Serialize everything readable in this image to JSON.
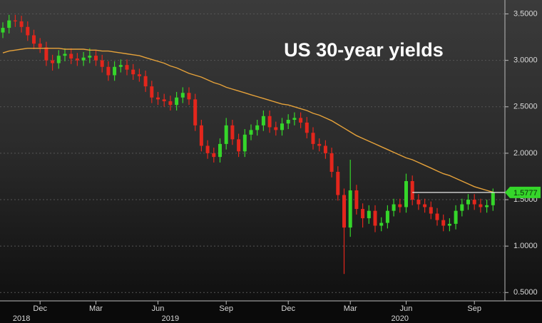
{
  "chart_data": {
    "type": "candlestick",
    "title": "US 30-year yields",
    "categories": [
      null,
      null,
      null,
      null,
      null,
      null,
      "Dec",
      null,
      null,
      null,
      null,
      null,
      null,
      null,
      null,
      "Mar",
      null,
      null,
      null,
      null,
      null,
      null,
      null,
      null,
      null,
      "Jun",
      null,
      null,
      null,
      null,
      null,
      null,
      null,
      null,
      null,
      null,
      "Sep",
      null,
      null,
      null,
      null,
      null,
      null,
      null,
      null,
      null,
      "Dec",
      null,
      null,
      null,
      null,
      null,
      null,
      null,
      null,
      null,
      "Mar",
      null,
      null,
      null,
      null,
      null,
      null,
      null,
      null,
      "Jun",
      null,
      null,
      null,
      null,
      null,
      null,
      null,
      null,
      null,
      null,
      "Sep",
      null,
      null,
      null
    ],
    "year_labels": [
      null,
      null,
      null,
      "2018",
      null,
      null,
      null,
      null,
      null,
      null,
      null,
      null,
      null,
      null,
      null,
      null,
      null,
      null,
      null,
      null,
      null,
      null,
      null,
      null,
      null,
      null,
      null,
      "2019",
      null,
      null,
      null,
      null,
      null,
      null,
      null,
      null,
      null,
      null,
      null,
      null,
      null,
      null,
      null,
      null,
      null,
      null,
      null,
      null,
      null,
      null,
      null,
      null,
      null,
      null,
      null,
      null,
      null,
      null,
      null,
      null,
      null,
      null,
      null,
      null,
      "2020",
      null,
      null,
      null,
      null,
      null,
      null,
      null,
      null,
      null,
      null,
      null,
      null,
      null,
      null,
      null
    ],
    "open": [
      3.3,
      3.35,
      3.43,
      3.42,
      3.36,
      3.27,
      3.18,
      3.14,
      3.0,
      2.97,
      3.05,
      3.07,
      3.02,
      3.0,
      3.03,
      3.05,
      3.0,
      2.93,
      2.84,
      2.93,
      2.95,
      2.9,
      2.85,
      2.83,
      2.72,
      2.6,
      2.58,
      2.56,
      2.52,
      2.6,
      2.65,
      2.58,
      2.3,
      2.08,
      2.0,
      1.96,
      2.1,
      2.3,
      2.15,
      2.02,
      2.2,
      2.25,
      2.3,
      2.4,
      2.28,
      2.25,
      2.32,
      2.36,
      2.38,
      2.33,
      2.22,
      2.1,
      2.08,
      2.0,
      1.8,
      1.55,
      1.2,
      1.6,
      1.4,
      1.3,
      1.38,
      1.22,
      1.25,
      1.38,
      1.45,
      1.42,
      1.7,
      1.5,
      1.45,
      1.42,
      1.35,
      1.28,
      1.22,
      1.24,
      1.38,
      1.45,
      1.5,
      1.45,
      1.42,
      1.44
    ],
    "high": [
      3.41,
      3.49,
      3.49,
      3.48,
      3.42,
      3.33,
      3.24,
      3.2,
      3.06,
      3.11,
      3.13,
      3.13,
      3.08,
      3.09,
      3.13,
      3.11,
      3.06,
      2.99,
      2.99,
      3.01,
      3.01,
      2.96,
      2.91,
      2.89,
      2.78,
      2.66,
      2.64,
      2.62,
      2.66,
      2.71,
      2.71,
      2.64,
      2.36,
      2.14,
      2.06,
      2.16,
      2.38,
      2.36,
      2.21,
      2.26,
      2.31,
      2.36,
      2.46,
      2.46,
      2.34,
      2.38,
      2.42,
      2.44,
      2.44,
      2.39,
      2.28,
      2.16,
      2.14,
      2.06,
      1.86,
      1.62,
      1.93,
      1.66,
      1.46,
      1.44,
      1.44,
      1.31,
      1.44,
      1.51,
      1.51,
      1.78,
      1.76,
      1.56,
      1.51,
      1.48,
      1.41,
      1.34,
      1.3,
      1.44,
      1.51,
      1.56,
      1.56,
      1.51,
      1.5,
      1.62
    ],
    "low": [
      3.24,
      3.29,
      3.36,
      3.3,
      3.21,
      3.12,
      3.08,
      2.94,
      2.89,
      2.91,
      2.99,
      2.96,
      2.94,
      2.94,
      2.97,
      2.94,
      2.87,
      2.78,
      2.78,
      2.87,
      2.84,
      2.79,
      2.77,
      2.66,
      2.54,
      2.52,
      2.5,
      2.46,
      2.46,
      2.54,
      2.52,
      2.24,
      2.02,
      1.94,
      1.9,
      1.9,
      2.04,
      2.09,
      1.96,
      1.96,
      2.14,
      2.19,
      2.24,
      2.22,
      2.19,
      2.19,
      2.26,
      2.3,
      2.27,
      2.16,
      2.04,
      2.02,
      1.94,
      1.74,
      1.49,
      0.7,
      1.1,
      1.34,
      1.2,
      1.24,
      1.15,
      1.16,
      1.19,
      1.32,
      1.36,
      1.36,
      1.44,
      1.39,
      1.36,
      1.29,
      1.22,
      1.16,
      1.16,
      1.18,
      1.32,
      1.39,
      1.39,
      1.36,
      1.36,
      1.38
    ],
    "close": [
      3.35,
      3.43,
      3.42,
      3.36,
      3.27,
      3.18,
      3.14,
      3.0,
      2.97,
      3.05,
      3.07,
      3.02,
      3.0,
      3.03,
      3.05,
      3.0,
      2.93,
      2.84,
      2.93,
      2.95,
      2.9,
      2.85,
      2.83,
      2.72,
      2.6,
      2.58,
      2.56,
      2.52,
      2.6,
      2.65,
      2.58,
      2.3,
      2.08,
      2.0,
      1.96,
      2.1,
      2.3,
      2.15,
      2.02,
      2.2,
      2.25,
      2.3,
      2.4,
      2.28,
      2.25,
      2.32,
      2.36,
      2.38,
      2.33,
      2.22,
      2.1,
      2.08,
      2.0,
      1.8,
      1.55,
      1.2,
      1.6,
      1.4,
      1.3,
      1.38,
      1.22,
      1.25,
      1.38,
      1.45,
      1.42,
      1.7,
      1.5,
      1.45,
      1.42,
      1.35,
      1.28,
      1.22,
      1.24,
      1.38,
      1.45,
      1.5,
      1.45,
      1.42,
      1.44,
      1.58
    ],
    "up_color": "#35d62a",
    "down_color": "#e3261c",
    "moving_average": {
      "color": "#e6a23a",
      "values": [
        3.08,
        3.1,
        3.11,
        3.12,
        3.13,
        3.13,
        3.13,
        3.13,
        3.13,
        3.13,
        3.12,
        3.12,
        3.12,
        3.12,
        3.11,
        3.11,
        3.1,
        3.1,
        3.09,
        3.08,
        3.07,
        3.06,
        3.05,
        3.03,
        3.01,
        2.99,
        2.97,
        2.94,
        2.92,
        2.89,
        2.86,
        2.84,
        2.82,
        2.79,
        2.76,
        2.74,
        2.71,
        2.69,
        2.67,
        2.65,
        2.63,
        2.61,
        2.59,
        2.57,
        2.55,
        2.53,
        2.52,
        2.5,
        2.48,
        2.46,
        2.43,
        2.41,
        2.38,
        2.35,
        2.31,
        2.27,
        2.23,
        2.19,
        2.16,
        2.13,
        2.1,
        2.07,
        2.04,
        2.01,
        1.98,
        1.95,
        1.93,
        1.9,
        1.87,
        1.84,
        1.81,
        1.78,
        1.76,
        1.73,
        1.7,
        1.67,
        1.64,
        1.62,
        1.6,
        1.58
      ]
    },
    "reference_line": 1.5777,
    "ylim": [
      0.41,
      3.65
    ],
    "yticks": [
      {
        "value": 0.5,
        "label": "0.5000"
      },
      {
        "value": 1.0,
        "label": "1.0000"
      },
      {
        "value": 1.5,
        "label": "1.5000"
      },
      {
        "value": 2.0,
        "label": "2.0000"
      },
      {
        "value": 2.5,
        "label": "2.5000"
      },
      {
        "value": 3.0,
        "label": "3.0000"
      },
      {
        "value": 3.5,
        "label": "3.5000"
      }
    ],
    "grid": true
  }
}
